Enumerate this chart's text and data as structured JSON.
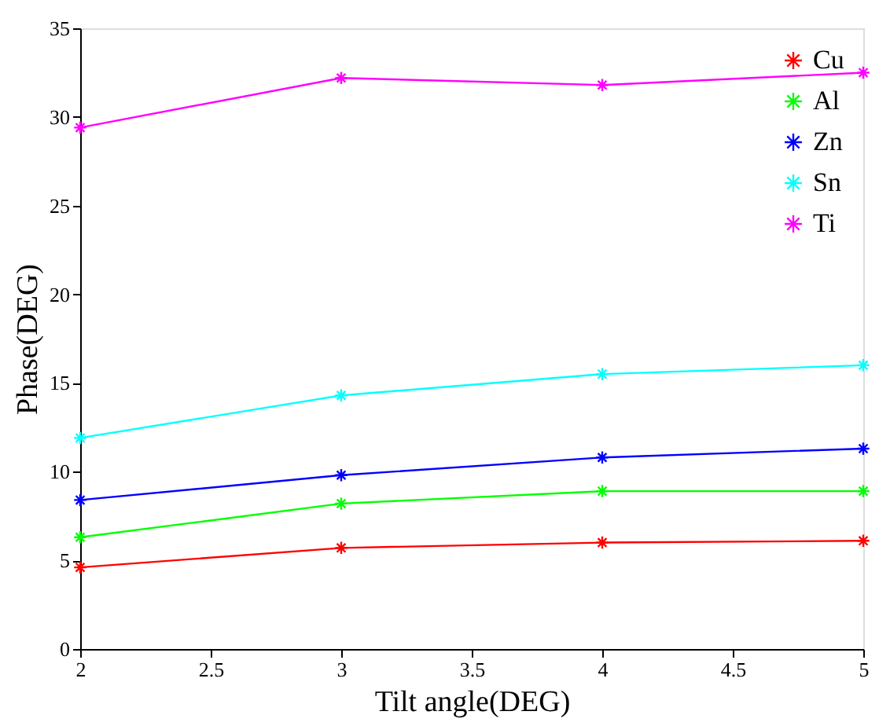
{
  "chart_data": {
    "type": "line",
    "xlabel": "Tilt angle(DEG)",
    "ylabel": "Phase(DEG)",
    "x": [
      2,
      3,
      4,
      5
    ],
    "series": [
      {
        "name": "Cu",
        "color": "#ff0000",
        "values": [
          4.6,
          5.7,
          6.0,
          6.1
        ]
      },
      {
        "name": "Al",
        "color": "#00ff00",
        "values": [
          6.3,
          8.2,
          8.9,
          8.9
        ]
      },
      {
        "name": "Zn",
        "color": "#0000ff",
        "values": [
          8.4,
          9.8,
          10.8,
          11.3
        ]
      },
      {
        "name": "Sn",
        "color": "#00ffff",
        "values": [
          11.9,
          14.3,
          15.5,
          16.0
        ]
      },
      {
        "name": "Ti",
        "color": "#ff00ff",
        "values": [
          29.4,
          32.2,
          31.8,
          32.5
        ]
      }
    ],
    "xlim": [
      2,
      5
    ],
    "xticks": [
      2,
      2.5,
      3,
      3.5,
      4,
      4.5,
      5
    ],
    "ylim": [
      0,
      35
    ],
    "yticks": [
      0,
      5,
      10,
      15,
      20,
      25,
      30,
      35
    ],
    "grid": false,
    "legend": "top right",
    "marker": "cross",
    "line_style": "solid"
  }
}
